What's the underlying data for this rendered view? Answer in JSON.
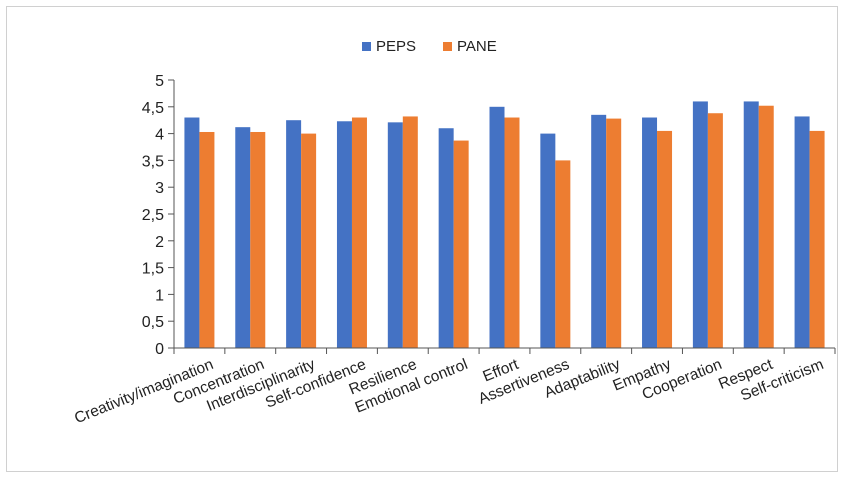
{
  "chart_data": {
    "type": "bar",
    "title": "",
    "xlabel": "",
    "ylabel": "",
    "ylim": [
      0,
      5
    ],
    "yticks": [
      "0",
      "0,5",
      "1",
      "1,5",
      "2",
      "2,5",
      "3",
      "3,5",
      "4",
      "4,5",
      "5"
    ],
    "legend_position": "top-center",
    "grid": false,
    "categories": [
      "Creativity/imagination",
      "Concentration",
      "Interdisciplinarity",
      "Self-confidence",
      "Resilience",
      "Emotional control",
      "Effort",
      "Assertiveness",
      "Adaptability",
      "Empathy",
      "Cooperation",
      "Respect",
      "Self-criticism"
    ],
    "series": [
      {
        "name": "PEPS",
        "color": "#4472C4",
        "values": [
          4.3,
          4.12,
          4.25,
          4.23,
          4.21,
          4.1,
          4.5,
          4.0,
          4.35,
          4.3,
          4.6,
          4.6,
          4.32
        ]
      },
      {
        "name": "PANE",
        "color": "#ED7D31",
        "values": [
          4.03,
          4.03,
          4.0,
          4.3,
          4.32,
          3.87,
          4.3,
          3.5,
          4.28,
          4.05,
          4.38,
          4.52,
          4.05
        ]
      }
    ]
  }
}
